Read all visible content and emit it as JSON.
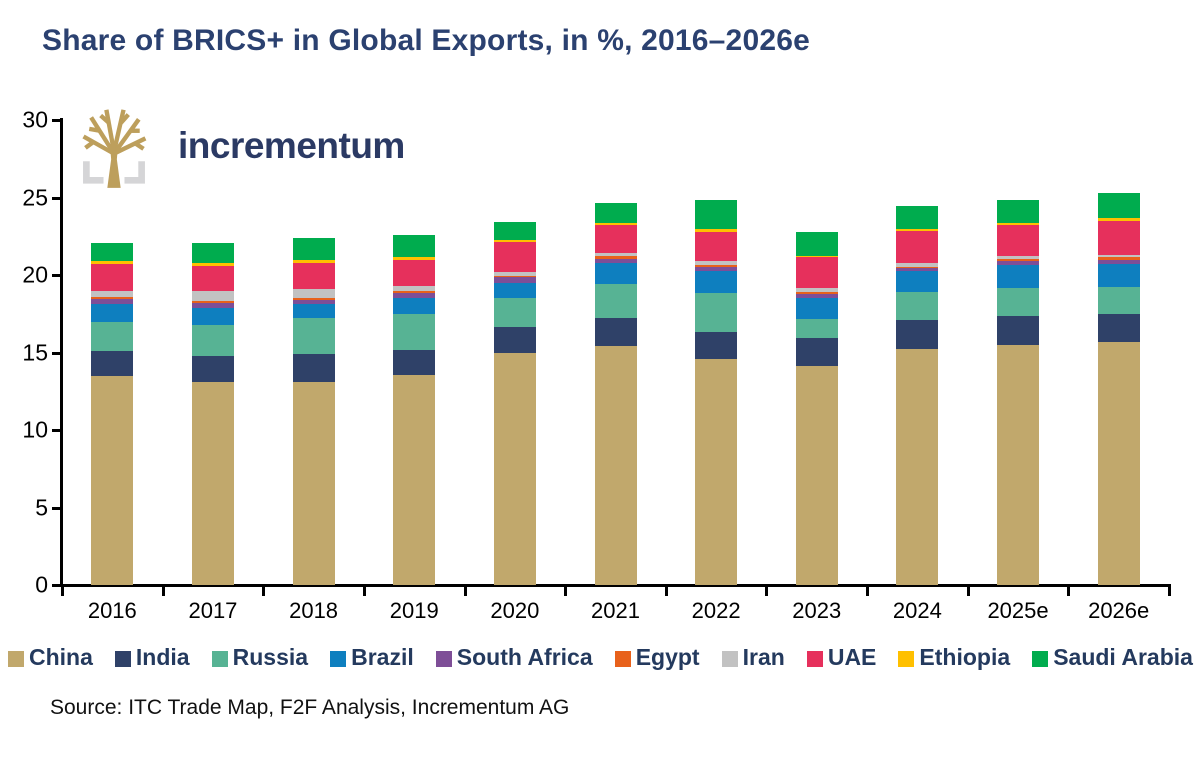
{
  "title": "Share of BRICS+ in Global Exports, in %, 2016–2026e",
  "logo": {
    "brand": "incrementum",
    "tree_color": "#BD9F5C",
    "bracket_color": "#D5D5D7"
  },
  "source": "Source: ITC Trade Map, F2F Analysis, Incrementum AG",
  "colors": {
    "title_text": "#2B4170",
    "legend_text": "#243A5E",
    "axis": "#000000"
  },
  "chart_data": {
    "type": "bar",
    "stacked": true,
    "grid": false,
    "legend_position": "bottom",
    "xlabel": "",
    "ylabel": "",
    "ylim": [
      0,
      30
    ],
    "yticks": [
      0,
      5,
      10,
      15,
      20,
      25,
      30
    ],
    "categories": [
      "2016",
      "2017",
      "2018",
      "2019",
      "2020",
      "2021",
      "2022",
      "2023",
      "2024",
      "2025e",
      "2026e"
    ],
    "series": [
      {
        "name": "China",
        "color": "#C1A86C",
        "values": [
          13.5,
          13.1,
          13.1,
          13.55,
          14.95,
          15.4,
          14.55,
          14.15,
          15.25,
          15.5,
          15.65
        ]
      },
      {
        "name": "India",
        "color": "#2F4168",
        "values": [
          1.6,
          1.7,
          1.8,
          1.6,
          1.7,
          1.85,
          1.8,
          1.8,
          1.85,
          1.85,
          1.85
        ]
      },
      {
        "name": "Russia",
        "color": "#57B394",
        "values": [
          1.9,
          2.0,
          2.3,
          2.35,
          1.85,
          2.2,
          2.5,
          1.2,
          1.8,
          1.8,
          1.75
        ]
      },
      {
        "name": "Brazil",
        "color": "#0E7FBF",
        "values": [
          1.1,
          1.1,
          0.9,
          1.05,
          1.0,
          1.35,
          1.4,
          1.35,
          1.35,
          1.5,
          1.45
        ]
      },
      {
        "name": "South Africa",
        "color": "#7E4E97",
        "values": [
          0.35,
          0.3,
          0.3,
          0.3,
          0.35,
          0.25,
          0.3,
          0.25,
          0.2,
          0.25,
          0.3
        ]
      },
      {
        "name": "Egypt",
        "color": "#E8611B",
        "values": [
          0.15,
          0.15,
          0.15,
          0.15,
          0.1,
          0.15,
          0.1,
          0.15,
          0.1,
          0.15,
          0.15
        ]
      },
      {
        "name": "Iran",
        "color": "#C2C2C2",
        "values": [
          0.4,
          0.6,
          0.55,
          0.3,
          0.25,
          0.25,
          0.25,
          0.25,
          0.2,
          0.2,
          0.15
        ]
      },
      {
        "name": "UAE",
        "color": "#E6305C",
        "values": [
          1.7,
          1.65,
          1.65,
          1.65,
          1.95,
          1.75,
          1.9,
          2.0,
          2.1,
          1.95,
          2.2
        ]
      },
      {
        "name": "Ethiopia",
        "color": "#FFC000",
        "values": [
          0.2,
          0.2,
          0.2,
          0.2,
          0.1,
          0.15,
          0.15,
          0.1,
          0.15,
          0.15,
          0.2
        ]
      },
      {
        "name": "Saudi Arabia",
        "color": "#00AC4E",
        "values": [
          1.2,
          1.25,
          1.45,
          1.45,
          1.2,
          1.3,
          1.9,
          1.55,
          1.45,
          1.5,
          1.6
        ]
      }
    ],
    "totals": [
      22.1,
      22.05,
      22.4,
      22.6,
      23.45,
      24.65,
      24.85,
      22.8,
      24.45,
      24.85,
      25.3
    ]
  }
}
